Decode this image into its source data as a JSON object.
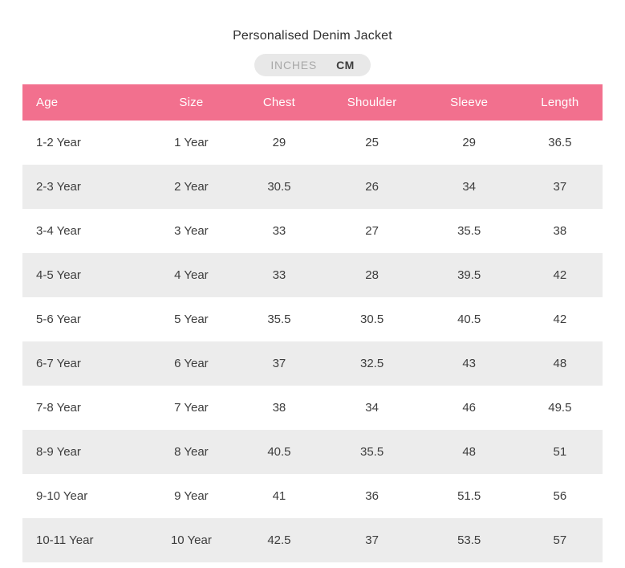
{
  "title": "Personalised Denim Jacket",
  "unit_toggle": {
    "options": [
      {
        "label": "INCHES",
        "active": false
      },
      {
        "label": "CM",
        "active": true
      }
    ]
  },
  "table": {
    "columns": [
      "Age",
      "Size",
      "Chest",
      "Shoulder",
      "Sleeve",
      "Length"
    ],
    "rows": [
      [
        "1-2 Year",
        "1 Year",
        "29",
        "25",
        "29",
        "36.5"
      ],
      [
        "2-3 Year",
        "2 Year",
        "30.5",
        "26",
        "34",
        "37"
      ],
      [
        "3-4 Year",
        "3 Year",
        "33",
        "27",
        "35.5",
        "38"
      ],
      [
        "4-5 Year",
        "4 Year",
        "33",
        "28",
        "39.5",
        "42"
      ],
      [
        "5-6 Year",
        "5 Year",
        "35.5",
        "30.5",
        "40.5",
        "42"
      ],
      [
        "6-7 Year",
        "6 Year",
        "37",
        "32.5",
        "43",
        "48"
      ],
      [
        "7-8 Year",
        "7 Year",
        "38",
        "34",
        "46",
        "49.5"
      ],
      [
        "8-9 Year",
        "8 Year",
        "40.5",
        "35.5",
        "48",
        "51"
      ],
      [
        "9-10 Year",
        "9 Year",
        "41",
        "36",
        "51.5",
        "56"
      ],
      [
        "10-11 Year",
        "10 Year",
        "42.5",
        "37",
        "53.5",
        "57"
      ]
    ]
  },
  "colors": {
    "title_text": "#2e2e2e",
    "header_bg": "#f2708e",
    "header_text": "#ffffff",
    "row_alt_bg": "#ececec",
    "cell_text": "#3d3d3d",
    "toggle_bg": "#e8e8e8",
    "toggle_inactive_text": "#a9a9a9",
    "toggle_active_text": "#3d3d3d"
  }
}
